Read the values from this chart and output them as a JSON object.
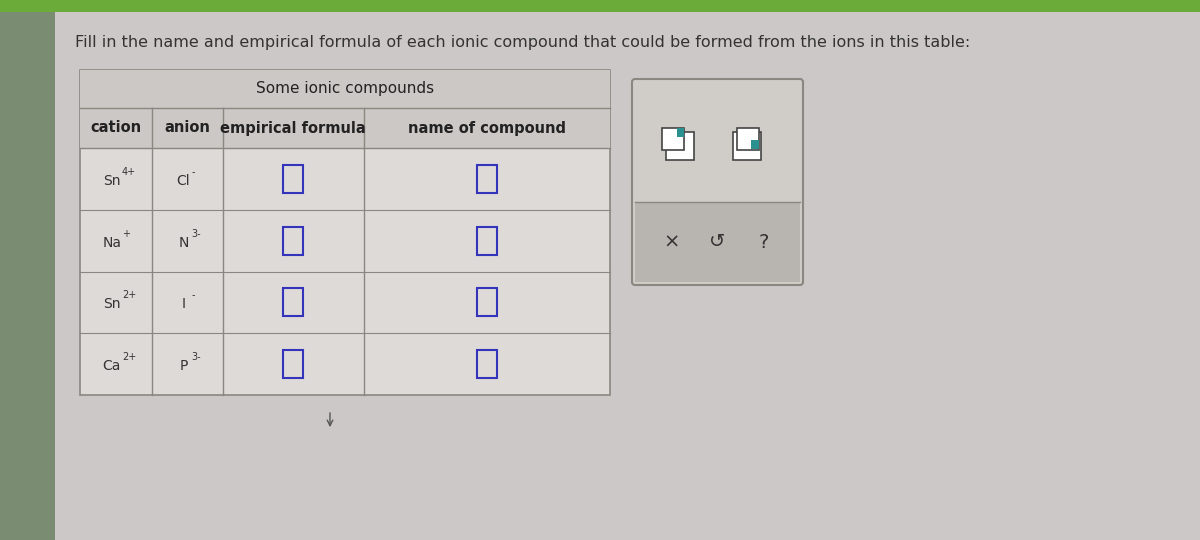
{
  "title_text": "Fill in the name and empirical formula of each ionic compound that could be formed from the ions in this table:",
  "table_title": "Some ionic compounds",
  "col_headers": [
    "cation",
    "anion",
    "empirical formula",
    "name of compound"
  ],
  "cations": [
    [
      "Sn",
      "4+"
    ],
    [
      "Na",
      "+"
    ],
    [
      "Sn",
      "2+"
    ],
    [
      "Ca",
      "2+"
    ]
  ],
  "anions": [
    [
      "Cl",
      "-"
    ],
    [
      "N",
      "3-"
    ],
    [
      "I",
      "-"
    ],
    [
      "P",
      "3-"
    ]
  ],
  "outer_bg": "#7a8c72",
  "content_bg": "#cdc8c8",
  "green_strip": "#6aab3a",
  "table_bg": "#dedad8",
  "header_row_bg": "#ccc8c5",
  "title_row_bg": "#ccc8c5",
  "border_color": "#888880",
  "input_box_color": "#3333bb",
  "popup_outer_bg": "#d0ccc8",
  "popup_border": "#888880",
  "popup_bar_bg": "#b8b4b0",
  "popup_icon_color": "#2a9090",
  "popup_icon_border": "#444444"
}
